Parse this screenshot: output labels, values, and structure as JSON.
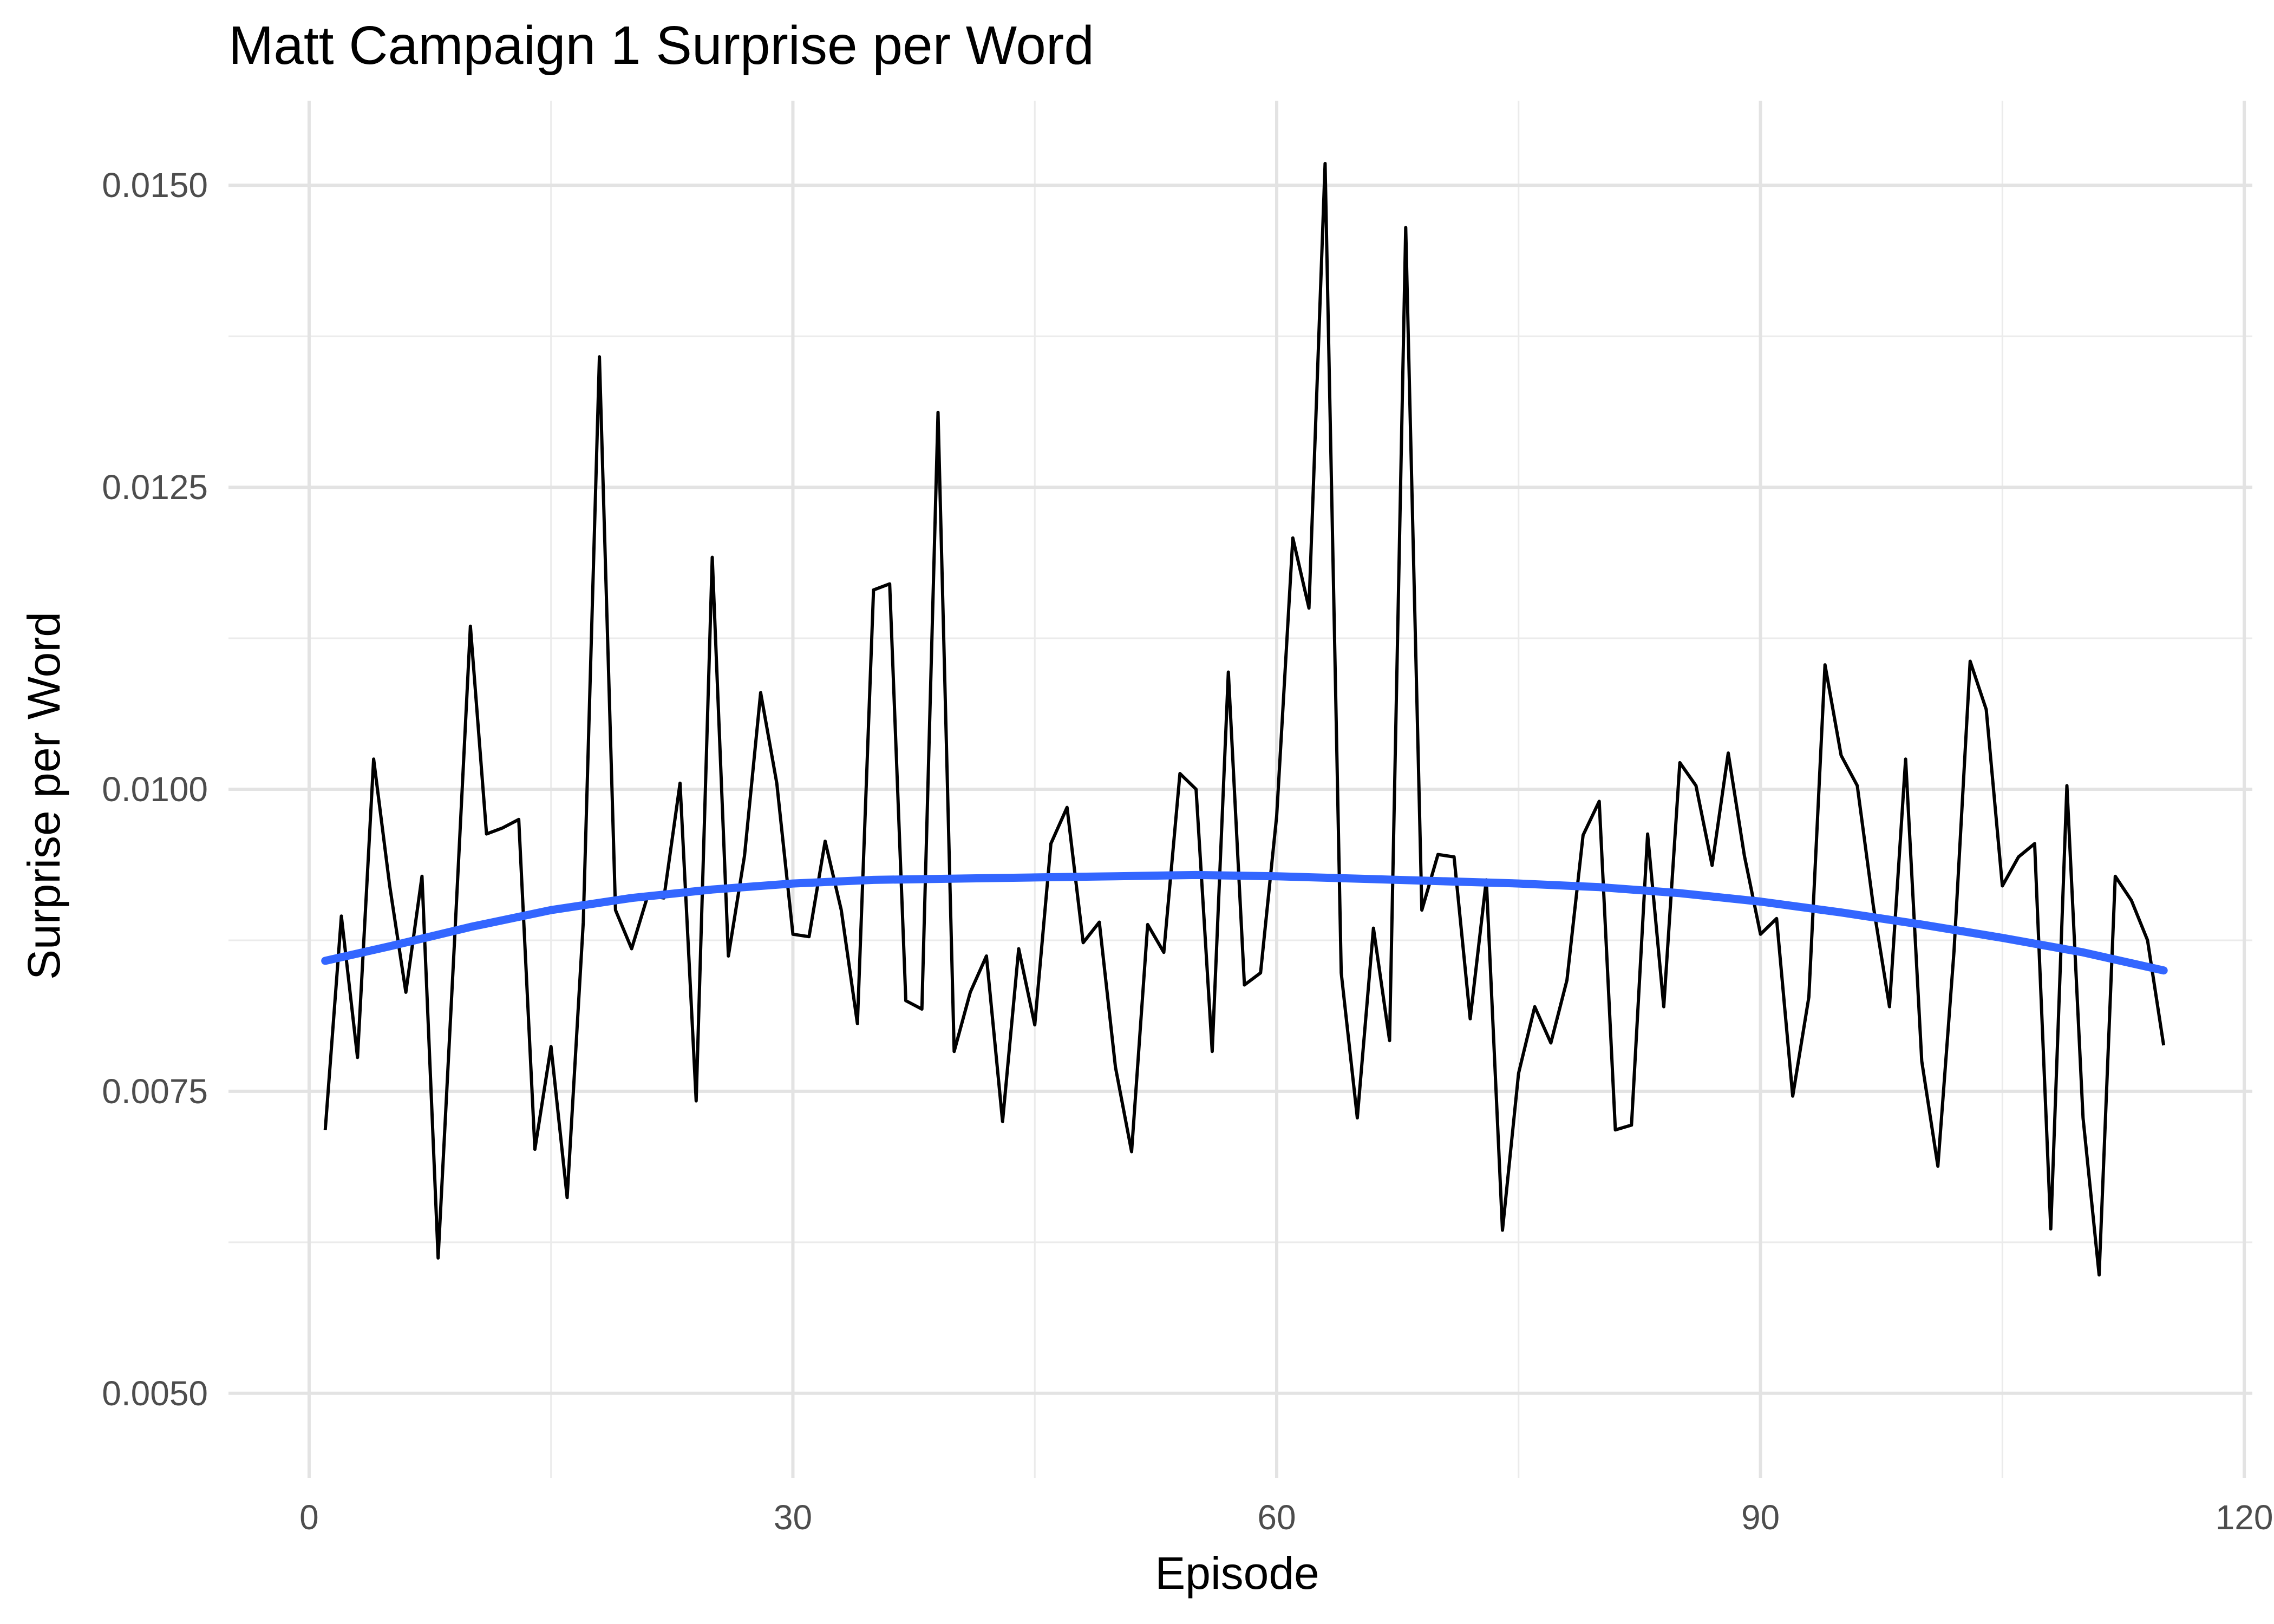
{
  "chart_data": {
    "type": "line",
    "title": "Matt Campaign 1 Surprise per Word",
    "xlabel": "Episode",
    "ylabel": "Surprise per Word",
    "xlim": [
      -5,
      120.5
    ],
    "ylim": [
      0.0043,
      0.0157
    ],
    "x_ticks": [
      0,
      30,
      60,
      90,
      120
    ],
    "x_tick_labels": [
      "0",
      "30",
      "60",
      "90",
      "120"
    ],
    "y_ticks": [
      0.005,
      0.0075,
      0.01,
      0.0125,
      0.015
    ],
    "y_tick_labels": [
      "0.0050",
      "0.0075",
      "0.0100",
      "0.0125",
      "0.0150"
    ],
    "grid": true,
    "legend": "none",
    "series": [
      {
        "role": "observed",
        "color": "#000000",
        "x": [
          1,
          2,
          3,
          4,
          5,
          6,
          7,
          8,
          9,
          10,
          11,
          12,
          13,
          14,
          15,
          16,
          17,
          18,
          19,
          20,
          21,
          22,
          23,
          24,
          25,
          26,
          27,
          28,
          29,
          30,
          31,
          32,
          33,
          34,
          35,
          36,
          37,
          38,
          39,
          40,
          41,
          42,
          43,
          44,
          45,
          46,
          47,
          48,
          49,
          50,
          51,
          52,
          53,
          54,
          55,
          56,
          57,
          58,
          59,
          60,
          61,
          62,
          63,
          64,
          65,
          66,
          67,
          68,
          69,
          70,
          71,
          72,
          73,
          74,
          75,
          76,
          77,
          78,
          79,
          80,
          81,
          82,
          83,
          84,
          85,
          86,
          87,
          88,
          89,
          90,
          91,
          92,
          93,
          94,
          95,
          96,
          97,
          98,
          99,
          100,
          101,
          102,
          103,
          104,
          105,
          106,
          107,
          108,
          109,
          110,
          111,
          112,
          113,
          114,
          115
        ],
        "values": [
          0.00718,
          0.00895,
          0.00778,
          0.01025,
          0.0092,
          0.00832,
          0.00928,
          0.00612,
          0.0087,
          0.01135,
          0.00963,
          0.00968,
          0.00975,
          0.00702,
          0.00787,
          0.00662,
          0.0089,
          0.01358,
          0.009,
          0.00868,
          0.00912,
          0.0091,
          0.01005,
          0.00742,
          0.01192,
          0.00862,
          0.00945,
          0.0108,
          0.01005,
          0.0088,
          0.00878,
          0.00957,
          0.009,
          0.00806,
          0.01165,
          0.0117,
          0.00825,
          0.00818,
          0.01312,
          0.00783,
          0.00832,
          0.00862,
          0.00725,
          0.00868,
          0.00805,
          0.00955,
          0.00985,
          0.00873,
          0.0089,
          0.0077,
          0.007,
          0.00888,
          0.00865,
          0.01013,
          0.01,
          0.00783,
          0.01097,
          0.00838,
          0.00848,
          0.00978,
          0.01208,
          0.0115,
          0.01518,
          0.00848,
          0.00728,
          0.00885,
          0.00792,
          0.01465,
          0.009,
          0.00946,
          0.00944,
          0.0081,
          0.00925,
          0.00635,
          0.00765,
          0.0082,
          0.0079,
          0.00842,
          0.00962,
          0.0099,
          0.00718,
          0.00722,
          0.00963,
          0.0082,
          0.01022,
          0.01003,
          0.00937,
          0.0103,
          0.00945,
          0.0088,
          0.00893,
          0.00746,
          0.00828,
          0.01103,
          0.01028,
          0.01003,
          0.00903,
          0.0082,
          0.01025,
          0.00775,
          0.00688,
          0.00866,
          0.01106,
          0.01066,
          0.0092,
          0.00944,
          0.00955,
          0.00636,
          0.01003,
          0.00728,
          0.00598,
          0.00928,
          0.00908,
          0.00875,
          0.00788
        ]
      },
      {
        "role": "smoothed",
        "color": "#3366ff",
        "x": [
          1,
          5,
          10,
          15,
          20,
          25,
          30,
          35,
          40,
          45,
          50,
          55,
          60,
          65,
          70,
          75,
          80,
          85,
          90,
          95,
          100,
          105,
          110,
          115
        ],
        "values": [
          0.00858,
          0.0087,
          0.00886,
          0.009,
          0.0091,
          0.00917,
          0.00922,
          0.00925,
          0.00926,
          0.00927,
          0.00928,
          0.00929,
          0.00928,
          0.00926,
          0.00924,
          0.00922,
          0.00919,
          0.00914,
          0.00907,
          0.00898,
          0.00888,
          0.00877,
          0.00865,
          0.0085
        ]
      }
    ]
  }
}
